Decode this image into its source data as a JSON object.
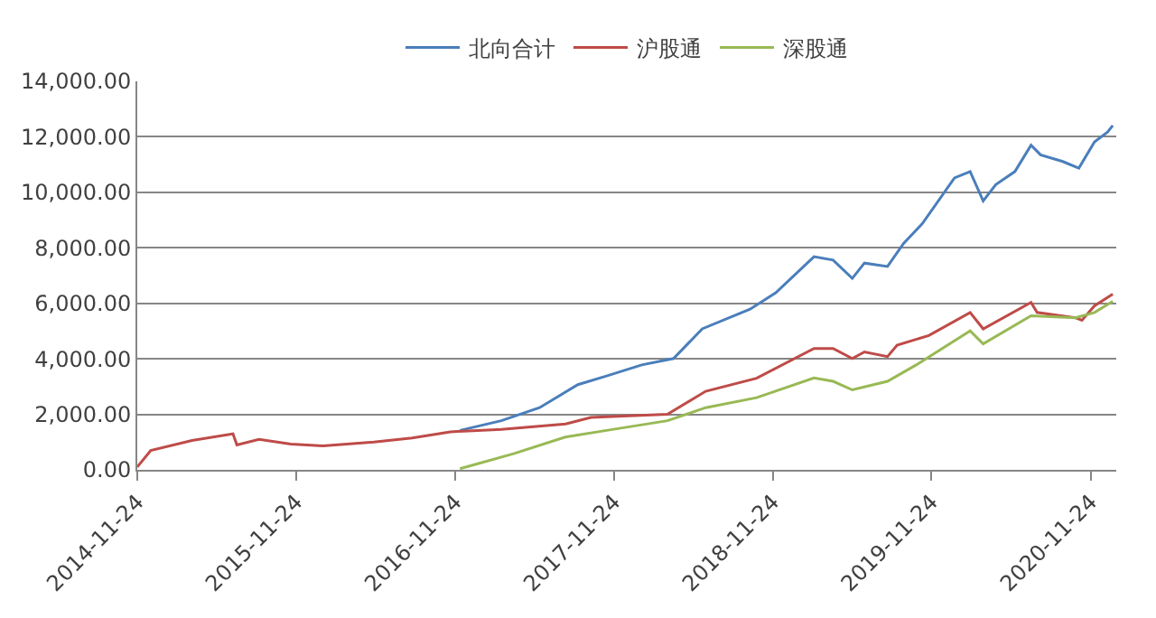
{
  "chart_data": {
    "type": "line",
    "xlim": [
      "2014-11-24",
      "2021-01-22"
    ],
    "xticks": [
      {
        "value": "2014-11-24",
        "label": "2014-11-24"
      },
      {
        "value": "2015-11-24",
        "label": "2015-11-24"
      },
      {
        "value": "2016-11-24",
        "label": "2016-11-24"
      },
      {
        "value": "2017-11-24",
        "label": "2017-11-24"
      },
      {
        "value": "2018-11-24",
        "label": "2018-11-24"
      },
      {
        "value": "2019-11-24",
        "label": "2019-11-24"
      },
      {
        "value": "2020-11-24",
        "label": "2020-11-24"
      }
    ],
    "ylim": [
      0,
      14000
    ],
    "yticks": [
      {
        "value": 0,
        "label": "0.00"
      },
      {
        "value": 2000,
        "label": "2,000.00"
      },
      {
        "value": 4000,
        "label": "4,000.00"
      },
      {
        "value": 6000,
        "label": "6,000.00"
      },
      {
        "value": 8000,
        "label": "8,000.00"
      },
      {
        "value": 10000,
        "label": "10,000.00"
      },
      {
        "value": 12000,
        "label": "12,000.00"
      },
      {
        "value": 14000,
        "label": "14,000.00"
      }
    ],
    "grid": "y",
    "legend": "top",
    "marker": "none",
    "line_style": "solid",
    "series": [
      {
        "name": "北向合计",
        "color": "#4a7ebb",
        "x": [
          "2016-12-05",
          "2017-03-10",
          "2017-06-06",
          "2017-09-02",
          "2017-11-07",
          "2018-01-27",
          "2018-04-10",
          "2018-06-15",
          "2018-10-03",
          "2018-12-01",
          "2019-02-27",
          "2019-04-12",
          "2019-05-26",
          "2019-06-23",
          "2019-08-15",
          "2019-09-21",
          "2019-11-03",
          "2020-01-16",
          "2020-02-21",
          "2020-03-22",
          "2020-04-20",
          "2020-06-03",
          "2020-07-10",
          "2020-08-01",
          "2020-09-21",
          "2020-10-28",
          "2020-12-03",
          "2021-01-02",
          "2021-01-14"
        ],
        "values": [
          1420,
          1770,
          2240,
          3070,
          3380,
          3780,
          4010,
          5080,
          5790,
          6380,
          7680,
          7560,
          6900,
          7450,
          7330,
          8160,
          8870,
          10520,
          10750,
          9690,
          10280,
          10750,
          11700,
          11350,
          11110,
          10870,
          11820,
          12170,
          12410
        ]
      },
      {
        "name": "沪股通",
        "color": "#be4b48",
        "x": [
          "2014-11-24",
          "2014-12-25",
          "2015-03-30",
          "2015-07-02",
          "2015-07-11",
          "2015-08-31",
          "2015-11-12",
          "2016-01-25",
          "2016-05-21",
          "2016-08-17",
          "2016-11-13",
          "2017-03-10",
          "2017-08-05",
          "2017-10-02",
          "2018-03-27",
          "2018-06-23",
          "2018-10-18",
          "2019-02-27",
          "2019-04-12",
          "2019-05-26",
          "2019-06-23",
          "2019-08-15",
          "2019-09-06",
          "2019-11-18",
          "2020-02-21",
          "2020-03-22",
          "2020-07-10",
          "2020-07-24",
          "2020-10-20",
          "2020-11-04",
          "2020-12-03",
          "2021-01-14"
        ],
        "values": [
          100,
          700,
          1060,
          1300,
          900,
          1100,
          930,
          860,
          1000,
          1150,
          1370,
          1460,
          1650,
          1890,
          2000,
          2830,
          3300,
          4370,
          4370,
          4010,
          4250,
          4080,
          4490,
          4840,
          5670,
          5080,
          6030,
          5670,
          5480,
          5390,
          5910,
          6330
        ]
      },
      {
        "name": "深股通",
        "color": "#98b954",
        "x": [
          "2016-12-05",
          "2017-04-09",
          "2017-08-04",
          "2017-11-07",
          "2018-03-27",
          "2018-06-23",
          "2018-10-18",
          "2019-02-27",
          "2019-04-12",
          "2019-05-26",
          "2019-08-15",
          "2019-10-20",
          "2020-02-21",
          "2020-03-22",
          "2020-07-10",
          "2020-10-20",
          "2020-12-03",
          "2021-01-14"
        ],
        "values": [
          40,
          590,
          1180,
          1420,
          1770,
          2240,
          2600,
          3310,
          3190,
          2880,
          3190,
          3780,
          5010,
          4540,
          5550,
          5480,
          5670,
          6070
        ]
      }
    ]
  }
}
